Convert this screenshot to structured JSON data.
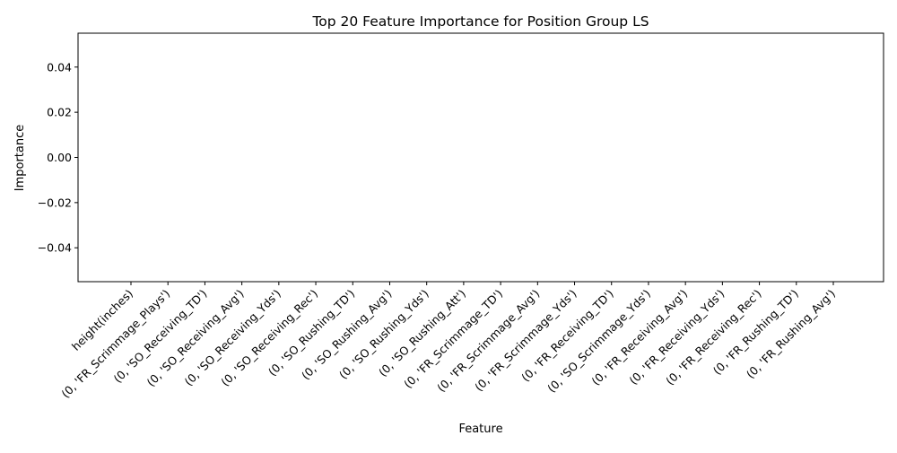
{
  "chart_data": {
    "type": "bar",
    "title": "Top 20 Feature Importance for Position Group LS",
    "xlabel": "Feature",
    "ylabel": "Importance",
    "categories": [
      "height(inches)",
      "(0, 'FR_Scrimmage_Plays')",
      "(0, 'SO_Receiving_TD')",
      "(0, 'SO_Receiving_Avg')",
      "(0, 'SO_Receiving_Yds')",
      "(0, 'SO_Receiving_Rec')",
      "(0, 'SO_Rushing_TD')",
      "(0, 'SO_Rushing_Avg')",
      "(0, 'SO_Rushing_Yds')",
      "(0, 'SO_Rushing_Att')",
      "(0, 'FR_Scrimmage_TD')",
      "(0, 'FR_Scrimmage_Avg')",
      "(0, 'FR_Scrimmage_Yds')",
      "(0, 'FR_Receiving_TD')",
      "(0, 'SO_Scrimmage_Yds')",
      "(0, 'FR_Receiving_Avg')",
      "(0, 'FR_Receiving_Yds')",
      "(0, 'FR_Receiving_Rec')",
      "(0, 'FR_Rushing_TD')",
      "(0, 'FR_Rushing_Avg')"
    ],
    "values": [
      0,
      0,
      0,
      0,
      0,
      0,
      0,
      0,
      0,
      0,
      0,
      0,
      0,
      0,
      0,
      0,
      0,
      0,
      0,
      0
    ],
    "ylim": [
      -0.055,
      0.055
    ],
    "yticks": [
      -0.04,
      -0.02,
      0.0,
      0.02,
      0.04
    ],
    "ytick_labels": [
      "−0.04",
      "−0.02",
      "0.00",
      "0.02",
      "0.04"
    ],
    "bar_color": "#1f77b4",
    "grid": false,
    "legend": "none"
  }
}
